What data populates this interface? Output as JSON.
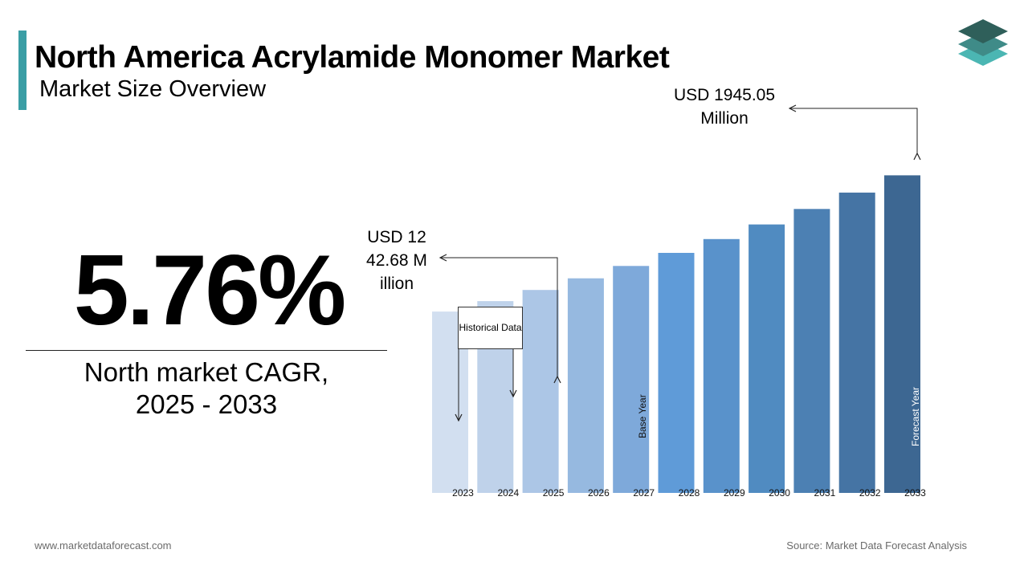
{
  "header": {
    "title": "North America Acrylamide Monomer Market",
    "subtitle": "Market Size Overview"
  },
  "colors": {
    "accent": "#3a9ea5",
    "logo_top": "#2f5f5a",
    "logo_mid": "#3f8b88",
    "logo_bottom": "#4bb6b3"
  },
  "kpi": {
    "cagr_value": "5.76%",
    "cagr_label_line1": "North market CAGR,",
    "cagr_label_line2": "2025 - 2033"
  },
  "annotations": {
    "historical": "Historical Data",
    "value_2025": "USD 1242.68 Million",
    "value_2033": "USD 1945.05 Million",
    "base_year": "Base Year",
    "forecast_year": "Forecast Year"
  },
  "chart_data": {
    "type": "bar",
    "categories": [
      "2023",
      "2024",
      "2025",
      "2026",
      "2027",
      "2028",
      "2029",
      "2030",
      "2031",
      "2032",
      "2033"
    ],
    "values": [
      1110.7,
      1174.7,
      1242.68,
      1314.3,
      1390.0,
      1470.0,
      1554.7,
      1644.2,
      1738.9,
      1839.1,
      1945.05
    ],
    "colors": [
      "#d2dff0",
      "#bfd2ea",
      "#acc6e6",
      "#96b9e0",
      "#7ea9da",
      "#5f9bd8",
      "#5992cb",
      "#508bc1",
      "#4c80b3",
      "#4574a4",
      "#3d6792"
    ],
    "ylim": [
      0,
      2100
    ],
    "grid": false,
    "xlabel": "",
    "ylabel": ""
  },
  "footer": {
    "website": "www.marketdataforecast.com",
    "source": "Source: Market Data Forecast Analysis"
  }
}
